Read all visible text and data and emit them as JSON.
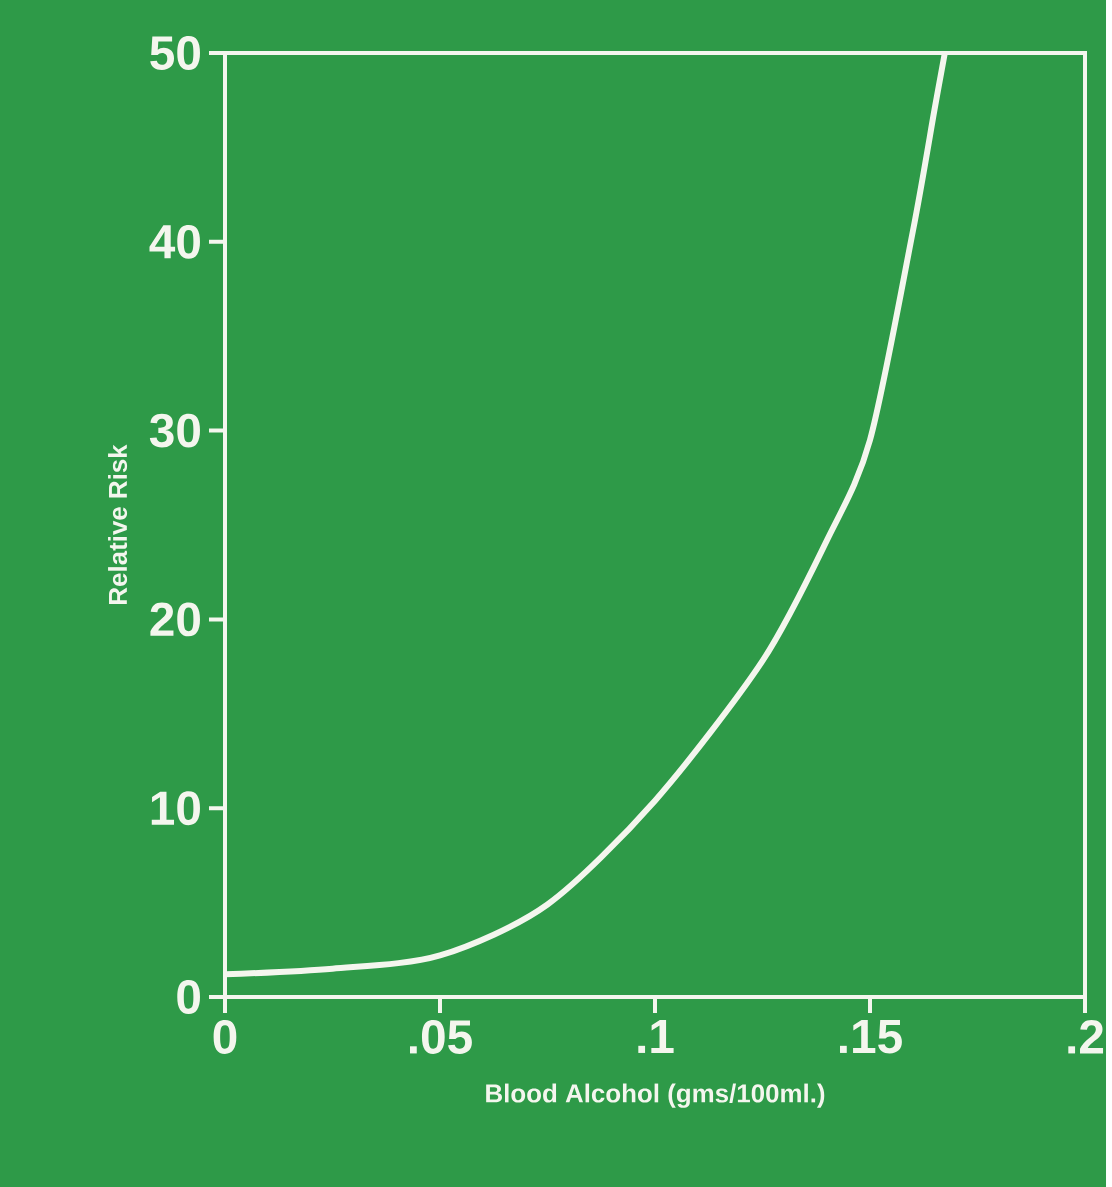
{
  "chart_data": {
    "type": "line",
    "xlabel": "Blood Alcohol (gms/100ml.)",
    "ylabel": "Relative Risk",
    "xlim": [
      0,
      0.2
    ],
    "ylim": [
      0,
      50
    ],
    "xticks": [
      0,
      {
        "value": 0.05,
        "label": ".05"
      },
      {
        "value": 0.1,
        "label": ".1"
      },
      {
        "value": 0.15,
        "label": ".15"
      },
      {
        "value": 0.2,
        "label": ".2"
      }
    ],
    "yticks": [
      0,
      10,
      20,
      30,
      40,
      50
    ],
    "x": [
      0,
      0.025,
      0.05,
      0.075,
      0.1,
      0.125,
      0.14,
      0.15,
      0.16,
      0.165,
      0.1674
    ],
    "series": [
      {
        "color": "#f4f6ee",
        "values": [
          1.2,
          1.5,
          2.2,
          4.9,
          10.4,
          17.8,
          24.2,
          29.5,
          40.6,
          47,
          50
        ]
      }
    ]
  }
}
